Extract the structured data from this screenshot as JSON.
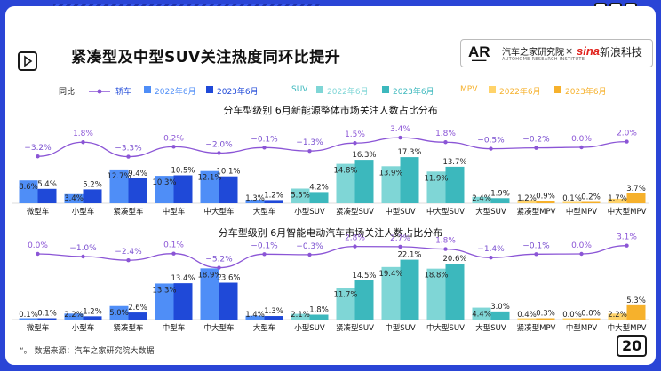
{
  "title": "紧凑型及中型SUV关注热度同环比提升",
  "logos": {
    "autohome": "汽车之家研究院",
    "autohome_sub": "AUTOHOME RESEARCH INSTITUTE",
    "sina": "新浪科技"
  },
  "legend": {
    "yoy_label": "同比",
    "sedan": "轿车",
    "suv": "SUV",
    "mpv": "MPV",
    "jun2022": "2022年6月",
    "jun2023": "2023年6月"
  },
  "colors": {
    "sedan_2022": "#4f8ef7",
    "sedan_2023": "#1f49d8",
    "suv_2022": "#7fd6d6",
    "suv_2023": "#3cb8bd",
    "mpv_2022": "#ffd36a",
    "mpv_2023": "#f6b12c",
    "line": "#8b55d6",
    "negative": "#7a4fd0"
  },
  "footnote": "数据来源：汽车之家研究院大数据",
  "page_number": "20",
  "chart_data": [
    {
      "type": "bar",
      "title": "分车型级别 6月新能源整体市场关注人数占比分布",
      "categories": [
        "微型车",
        "小型车",
        "紧凑型车",
        "中型车",
        "中大型车",
        "大型车",
        "小型SUV",
        "紧凑型SUV",
        "中型SUV",
        "中大型SUV",
        "大型SUV",
        "紧凑型MPV",
        "中型MPV",
        "中大型MPV"
      ],
      "groups": [
        "sedan",
        "sedan",
        "sedan",
        "sedan",
        "sedan",
        "sedan",
        "suv",
        "suv",
        "suv",
        "suv",
        "suv",
        "mpv",
        "mpv",
        "mpv"
      ],
      "series": [
        {
          "name": "2022年6月",
          "values": [
            8.6,
            3.4,
            12.7,
            10.3,
            12.1,
            1.3,
            5.5,
            14.8,
            13.9,
            11.9,
            2.4,
            1.2,
            0.1,
            1.7
          ]
        },
        {
          "name": "2023年6月",
          "values": [
            5.4,
            5.2,
            9.4,
            10.5,
            10.1,
            1.2,
            4.2,
            16.3,
            17.3,
            13.7,
            1.9,
            0.9,
            0.2,
            3.7
          ]
        }
      ],
      "line": {
        "name": "同比",
        "values": [
          -3.2,
          1.8,
          -3.3,
          0.2,
          -2.0,
          -0.1,
          -1.3,
          1.5,
          3.4,
          1.8,
          -0.5,
          -0.2,
          0.0,
          2.0
        ],
        "labels": [
          "−3.2%",
          "1.8%",
          "−3.3%",
          "0.2%",
          "−2.0%",
          "−0.1%",
          "−1.3%",
          "1.5%",
          "3.4%",
          "1.8%",
          "−0.5%",
          "−0.2%",
          "0.0%",
          "2.0%"
        ]
      },
      "bar_labels": {
        "s2022": [
          "8.6%",
          "3.4%",
          "12.7%",
          "10.3%",
          "12.1%",
          "1.3%",
          "5.5%",
          "14.8%",
          "13.9%",
          "11.9%",
          "2.4%",
          "1.2%",
          "0.1%",
          "1.7%"
        ],
        "s2023": [
          "5.4%",
          "5.2%",
          "9.4%",
          "10.5%",
          "10.1%",
          "1.2%",
          "4.2%",
          "16.3%",
          "17.3%",
          "13.7%",
          "1.9%",
          "0.9%",
          "0.2%",
          "3.7%"
        ]
      }
    },
    {
      "type": "bar",
      "title": "分车型级别 6月智能电动汽车市场关注人数占比分布",
      "categories": [
        "微型车",
        "小型车",
        "紧凑型车",
        "中型车",
        "中大型车",
        "大型车",
        "小型SUV",
        "紧凑型SUV",
        "中型SUV",
        "中大型SUV",
        "大型SUV",
        "紧凑型MPV",
        "中型MPV",
        "中大型MPV"
      ],
      "groups": [
        "sedan",
        "sedan",
        "sedan",
        "sedan",
        "sedan",
        "sedan",
        "suv",
        "suv",
        "suv",
        "suv",
        "suv",
        "mpv",
        "mpv",
        "mpv"
      ],
      "series": [
        {
          "name": "2022年6月",
          "values": [
            0.1,
            2.2,
            5.0,
            13.3,
            18.9,
            1.4,
            2.1,
            11.7,
            19.4,
            18.8,
            4.4,
            0.4,
            0.0,
            2.2
          ]
        },
        {
          "name": "2023年6月",
          "values": [
            0.1,
            1.2,
            2.6,
            13.4,
            13.6,
            1.3,
            1.8,
            14.5,
            22.1,
            20.6,
            3.0,
            0.3,
            0.0,
            5.3
          ]
        }
      ],
      "line": {
        "name": "同比",
        "values": [
          0.0,
          -1.0,
          -2.4,
          0.1,
          -5.2,
          -0.1,
          -0.3,
          2.8,
          2.7,
          1.8,
          -1.4,
          -0.1,
          0.0,
          3.1
        ],
        "labels": [
          "0.0%",
          "−1.0%",
          "−2.4%",
          "0.1%",
          "−5.2%",
          "−0.1%",
          "−0.3%",
          "2.8%",
          "2.7%",
          "1.8%",
          "−1.4%",
          "−0.1%",
          "0.0%",
          "3.1%"
        ]
      },
      "bar_labels": {
        "s2022": [
          "0.1%",
          "2.2%",
          "5.0%",
          "13.3%",
          "18.9%",
          "1.4%",
          "2.1%",
          "11.7%",
          "19.4%",
          "18.8%",
          "4.4%",
          "0.4%",
          "0.0%",
          "2.2%"
        ],
        "s2023": [
          "0.1%",
          "1.2%",
          "2.6%",
          "13.4%",
          "13.6%",
          "1.3%",
          "1.8%",
          "14.5%",
          "22.1%",
          "20.6%",
          "3.0%",
          "0.3%",
          "0.0%",
          "5.3%"
        ]
      }
    }
  ]
}
